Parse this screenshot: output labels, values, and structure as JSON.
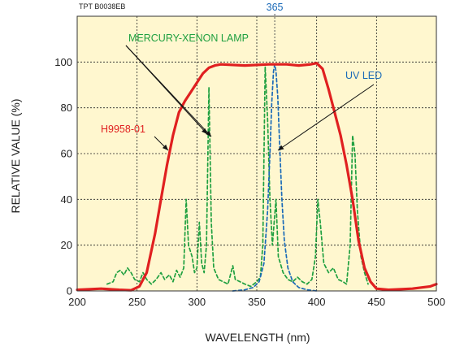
{
  "chart_data": {
    "type": "line",
    "title": "",
    "figure_code": "TPT B0038EB",
    "xlabel": "WAVELENGTH (nm)",
    "ylabel": "RELATIVE VALUE  (%)",
    "xlim": [
      200,
      500
    ],
    "ylim": [
      0,
      120
    ],
    "x_ticks": [
      "200",
      "250",
      "300",
      "350",
      "400",
      "450",
      "500"
    ],
    "y_ticks": [
      "0",
      "20",
      "40",
      "60",
      "80",
      "100"
    ],
    "grid": true,
    "background_color": "#fff7cf",
    "marker": {
      "x": 365,
      "label": "365"
    },
    "series": [
      {
        "name": "H9958-01",
        "color": "#e02020",
        "style": "solid",
        "points": [
          [
            200,
            0.5
          ],
          [
            220,
            1
          ],
          [
            235,
            0.5
          ],
          [
            245,
            0.3
          ],
          [
            252,
            2
          ],
          [
            258,
            8
          ],
          [
            265,
            25
          ],
          [
            270,
            40
          ],
          [
            275,
            55
          ],
          [
            280,
            68
          ],
          [
            285,
            78
          ],
          [
            290,
            83
          ],
          [
            295,
            87
          ],
          [
            300,
            91
          ],
          [
            305,
            95
          ],
          [
            310,
            97.5
          ],
          [
            315,
            98.5
          ],
          [
            320,
            99
          ],
          [
            340,
            98.5
          ],
          [
            360,
            99
          ],
          [
            375,
            99
          ],
          [
            385,
            98.5
          ],
          [
            395,
            99
          ],
          [
            400,
            99.5
          ],
          [
            405,
            97
          ],
          [
            410,
            88
          ],
          [
            415,
            78
          ],
          [
            420,
            68
          ],
          [
            425,
            55
          ],
          [
            430,
            40
          ],
          [
            435,
            22
          ],
          [
            440,
            10
          ],
          [
            445,
            4
          ],
          [
            450,
            1
          ],
          [
            460,
            0.5
          ],
          [
            480,
            1
          ],
          [
            495,
            2
          ],
          [
            500,
            3
          ]
        ]
      },
      {
        "name": "MERCURY-XENON LAMP",
        "color": "#20a040",
        "style": "dashed",
        "points": [
          [
            225,
            3
          ],
          [
            230,
            4
          ],
          [
            233,
            8
          ],
          [
            236,
            9
          ],
          [
            239,
            7
          ],
          [
            242,
            10
          ],
          [
            245,
            8
          ],
          [
            248,
            5
          ],
          [
            252,
            4
          ],
          [
            255,
            8
          ],
          [
            258,
            5
          ],
          [
            262,
            3
          ],
          [
            266,
            5
          ],
          [
            270,
            8
          ],
          [
            273,
            5
          ],
          [
            277,
            7
          ],
          [
            280,
            4
          ],
          [
            283,
            9
          ],
          [
            286,
            6
          ],
          [
            289,
            10
          ],
          [
            291,
            40
          ],
          [
            293,
            20
          ],
          [
            296,
            15
          ],
          [
            298,
            8
          ],
          [
            300,
            10
          ],
          [
            302,
            30
          ],
          [
            304,
            12
          ],
          [
            306,
            8
          ],
          [
            308,
            20
          ],
          [
            310,
            89
          ],
          [
            312,
            30
          ],
          [
            314,
            10
          ],
          [
            318,
            5
          ],
          [
            322,
            4
          ],
          [
            326,
            3
          ],
          [
            330,
            11
          ],
          [
            332,
            5
          ],
          [
            336,
            4
          ],
          [
            340,
            3
          ],
          [
            345,
            2
          ],
          [
            350,
            4
          ],
          [
            353,
            6
          ],
          [
            355,
            20
          ],
          [
            357,
            98
          ],
          [
            359,
            75
          ],
          [
            361,
            40
          ],
          [
            363,
            20
          ],
          [
            366,
            40
          ],
          [
            368,
            15
          ],
          [
            372,
            8
          ],
          [
            376,
            5
          ],
          [
            380,
            4
          ],
          [
            384,
            6
          ],
          [
            388,
            4
          ],
          [
            392,
            3
          ],
          [
            396,
            5
          ],
          [
            399,
            15
          ],
          [
            401,
            40
          ],
          [
            403,
            30
          ],
          [
            406,
            12
          ],
          [
            410,
            8
          ],
          [
            414,
            10
          ],
          [
            418,
            5
          ],
          [
            422,
            4
          ],
          [
            425,
            3
          ],
          [
            428,
            20
          ],
          [
            430,
            68
          ],
          [
            432,
            60
          ],
          [
            434,
            35
          ],
          [
            437,
            15
          ],
          [
            440,
            8
          ],
          [
            443,
            3
          ]
        ]
      },
      {
        "name": "UV LED",
        "color": "#1a6ab8",
        "style": "dashed",
        "points": [
          [
            330,
            0
          ],
          [
            340,
            0.5
          ],
          [
            347,
            1.5
          ],
          [
            352,
            4
          ],
          [
            356,
            12
          ],
          [
            359,
            35
          ],
          [
            361,
            60
          ],
          [
            362.5,
            82
          ],
          [
            364,
            96
          ],
          [
            365,
            99
          ],
          [
            366,
            96
          ],
          [
            367.5,
            85
          ],
          [
            369,
            65
          ],
          [
            371,
            40
          ],
          [
            373,
            22
          ],
          [
            376,
            10
          ],
          [
            380,
            4
          ],
          [
            385,
            1.5
          ],
          [
            392,
            0.5
          ],
          [
            400,
            0
          ]
        ]
      }
    ],
    "annotations": [
      {
        "text": "MERCURY-XENON LAMP",
        "color": "#20a040"
      },
      {
        "text": "UV LED",
        "color": "#1a6ab8"
      },
      {
        "text": "H9958-01",
        "color": "#e02020"
      }
    ]
  }
}
